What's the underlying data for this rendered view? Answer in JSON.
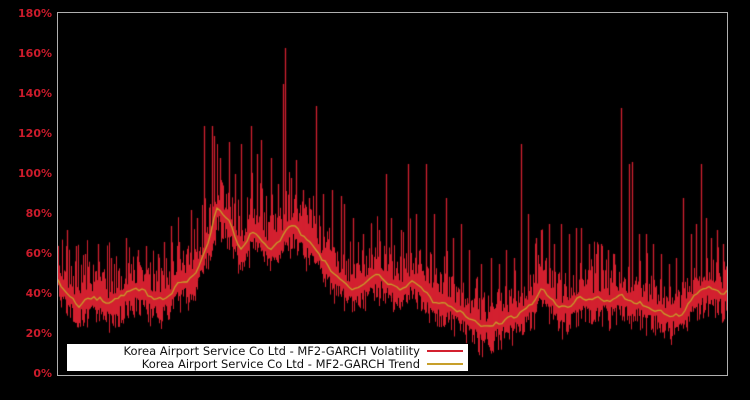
{
  "colors": {
    "background": "#000000",
    "plot_border": "#b0b0b0",
    "axis_label": "#cc1b2b",
    "volatility": "#d3202f",
    "trend": "#c79f2a",
    "legend_background": "#ffffff",
    "legend_text": "#111111"
  },
  "legend": {
    "items": [
      {
        "label": "Korea Airport Service Co Ltd - MF2-GARCH Volatility",
        "color": "#d3202f"
      },
      {
        "label": "Korea Airport Service Co Ltd - MF2-GARCH Trend",
        "color": "#c79f2a"
      }
    ]
  },
  "chart_data": {
    "type": "line",
    "title": "",
    "xlabel": "",
    "ylabel": "",
    "ylim": [
      0,
      180
    ],
    "y_tick_labels": [
      "0%",
      "20%",
      "40%",
      "60%",
      "80%",
      "100%",
      "120%",
      "140%",
      "160%",
      "180%"
    ],
    "y_tick_values": [
      0,
      20,
      40,
      60,
      80,
      100,
      120,
      140,
      160,
      180
    ],
    "x_tick_labels": [],
    "grid": false,
    "legend_position": "bottom-left-inside",
    "noise_seed": 7,
    "series": [
      {
        "name": "Korea Airport Service Co Ltd - MF2-GARCH Volatility",
        "color": "#d3202f",
        "style": "spiky-band",
        "band_low_offset": [
          2.5,
          12
        ],
        "band_high_offset": [
          2.5,
          15
        ],
        "spikes": [
          [
            9,
            72
          ],
          [
            18,
            64
          ],
          [
            27,
            60
          ],
          [
            40,
            65
          ],
          [
            53,
            58
          ],
          [
            68,
            68
          ],
          [
            80,
            62
          ],
          [
            88,
            64
          ],
          [
            100,
            60
          ],
          [
            106,
            66
          ],
          [
            113,
            74
          ],
          [
            121,
            66
          ],
          [
            133,
            82
          ],
          [
            139,
            78
          ],
          [
            146,
            124
          ],
          [
            154,
            124
          ],
          [
            156,
            119
          ],
          [
            162,
            108
          ],
          [
            171,
            116
          ],
          [
            177,
            100
          ],
          [
            183,
            115
          ],
          [
            193,
            124
          ],
          [
            199,
            110
          ],
          [
            203,
            117
          ],
          [
            213,
            108
          ],
          [
            220,
            95
          ],
          [
            225,
            145
          ],
          [
            227,
            163
          ],
          [
            233,
            98
          ],
          [
            238,
            107
          ],
          [
            245,
            92
          ],
          [
            251,
            88
          ],
          [
            258,
            134
          ],
          [
            265,
            90
          ],
          [
            274,
            92
          ],
          [
            283,
            89
          ],
          [
            286,
            85
          ],
          [
            295,
            78
          ],
          [
            305,
            70
          ],
          [
            313,
            75
          ],
          [
            321,
            72
          ],
          [
            328,
            100
          ],
          [
            333,
            78
          ],
          [
            343,
            72
          ],
          [
            350,
            105
          ],
          [
            358,
            80
          ],
          [
            368,
            105
          ],
          [
            376,
            80
          ],
          [
            388,
            88
          ],
          [
            395,
            68
          ],
          [
            403,
            75
          ],
          [
            411,
            62
          ],
          [
            423,
            55
          ],
          [
            433,
            58
          ],
          [
            441,
            55
          ],
          [
            448,
            62
          ],
          [
            456,
            58
          ],
          [
            463,
            115
          ],
          [
            470,
            80
          ],
          [
            478,
            68
          ],
          [
            483,
            72
          ],
          [
            491,
            75
          ],
          [
            496,
            65
          ],
          [
            503,
            75
          ],
          [
            511,
            70
          ],
          [
            518,
            73
          ],
          [
            523,
            73
          ],
          [
            531,
            65
          ],
          [
            538,
            60
          ],
          [
            543,
            65
          ],
          [
            550,
            62
          ],
          [
            556,
            60
          ],
          [
            563,
            133
          ],
          [
            571,
            105
          ],
          [
            574,
            106
          ],
          [
            581,
            70
          ],
          [
            588,
            70
          ],
          [
            595,
            65
          ],
          [
            603,
            60
          ],
          [
            611,
            55
          ],
          [
            618,
            58
          ],
          [
            625,
            88
          ],
          [
            633,
            70
          ],
          [
            638,
            75
          ],
          [
            643,
            105
          ],
          [
            648,
            78
          ],
          [
            653,
            68
          ],
          [
            659,
            72
          ],
          [
            665,
            65
          ]
        ]
      },
      {
        "name": "Korea Airport Service Co Ltd - MF2-GARCH Trend",
        "color": "#c79f2a",
        "style": "smooth-line",
        "points": [
          [
            0,
            47
          ],
          [
            5,
            43
          ],
          [
            10,
            40
          ],
          [
            20,
            34
          ],
          [
            30,
            37
          ],
          [
            40,
            38
          ],
          [
            50,
            35
          ],
          [
            60,
            38
          ],
          [
            70,
            41
          ],
          [
            80,
            43
          ],
          [
            90,
            40
          ],
          [
            100,
            37
          ],
          [
            110,
            38
          ],
          [
            120,
            45
          ],
          [
            130,
            47
          ],
          [
            140,
            53
          ],
          [
            150,
            65
          ],
          [
            155,
            75
          ],
          [
            159,
            84
          ],
          [
            165,
            80
          ],
          [
            171,
            76
          ],
          [
            178,
            68
          ],
          [
            183,
            62
          ],
          [
            189,
            66
          ],
          [
            193,
            72
          ],
          [
            199,
            70
          ],
          [
            205,
            66
          ],
          [
            211,
            63
          ],
          [
            217,
            64
          ],
          [
            223,
            67
          ],
          [
            230,
            73
          ],
          [
            236,
            75
          ],
          [
            243,
            70
          ],
          [
            248,
            67
          ],
          [
            253,
            65
          ],
          [
            263,
            58
          ],
          [
            273,
            52
          ],
          [
            283,
            47
          ],
          [
            293,
            42
          ],
          [
            303,
            44
          ],
          [
            313,
            49
          ],
          [
            323,
            49
          ],
          [
            333,
            44
          ],
          [
            343,
            42
          ],
          [
            353,
            47
          ],
          [
            363,
            44
          ],
          [
            373,
            37
          ],
          [
            383,
            35
          ],
          [
            393,
            34
          ],
          [
            403,
            31
          ],
          [
            413,
            27
          ],
          [
            423,
            24
          ],
          [
            431,
            23
          ],
          [
            438,
            25
          ],
          [
            443,
            26
          ],
          [
            448,
            27
          ],
          [
            453,
            28
          ],
          [
            458,
            29
          ],
          [
            463,
            31
          ],
          [
            470,
            33
          ],
          [
            476,
            37
          ],
          [
            483,
            43
          ],
          [
            488,
            41
          ],
          [
            493,
            38
          ],
          [
            498,
            35
          ],
          [
            503,
            33
          ],
          [
            513,
            34
          ],
          [
            523,
            39
          ],
          [
            533,
            37
          ],
          [
            543,
            38
          ],
          [
            553,
            36
          ],
          [
            563,
            40
          ],
          [
            573,
            36
          ],
          [
            583,
            35
          ],
          [
            593,
            33
          ],
          [
            603,
            31
          ],
          [
            613,
            29
          ],
          [
            623,
            30
          ],
          [
            633,
            37
          ],
          [
            643,
            42
          ],
          [
            653,
            43
          ],
          [
            658,
            42
          ],
          [
            663,
            40
          ],
          [
            670,
            42
          ]
        ]
      }
    ]
  }
}
